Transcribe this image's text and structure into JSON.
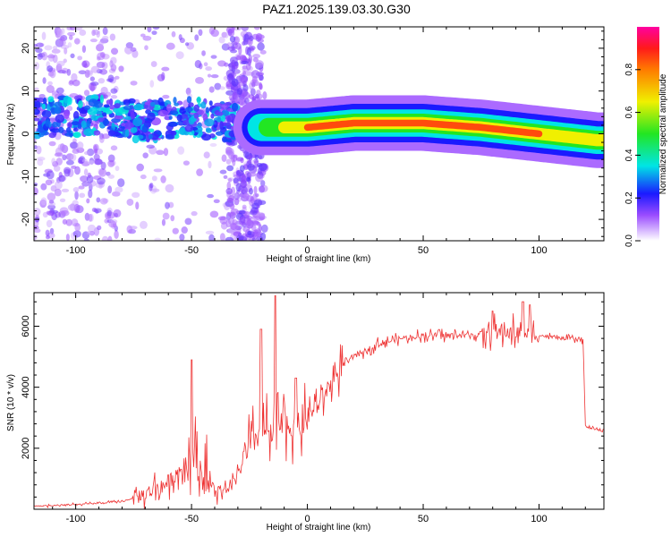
{
  "title": "PAZ1.2025.139.03.30.G30",
  "chart_data": [
    {
      "type": "heatmap",
      "title": "",
      "xlabel": "Height of straight line (km)",
      "ylabel": "Frequency (Hz)",
      "xlim": [
        -118,
        128
      ],
      "ylim": [
        -25,
        25
      ],
      "xticks": [
        -100,
        -50,
        0,
        50,
        100
      ],
      "yticks": [
        -20,
        -10,
        0,
        10,
        20
      ],
      "colorbar": {
        "label": "Normalized spectral amplitude",
        "range": [
          0,
          1
        ],
        "ticks": [
          "0.0",
          "0.2",
          "0.4",
          "0.6",
          "0.8"
        ],
        "colormap": "rainbow"
      },
      "ridge": [
        {
          "x": -110,
          "y": 4,
          "amp": 0.25
        },
        {
          "x": -90,
          "y": 4,
          "amp": 0.3
        },
        {
          "x": -70,
          "y": 3,
          "amp": 0.3
        },
        {
          "x": -50,
          "y": 4,
          "amp": 0.3
        },
        {
          "x": -40,
          "y": 3,
          "amp": 0.25
        },
        {
          "x": -20,
          "y": 1.5,
          "amp": 0.45
        },
        {
          "x": 0,
          "y": 1.5,
          "amp": 0.85
        },
        {
          "x": 20,
          "y": 2.5,
          "amp": 0.9
        },
        {
          "x": 50,
          "y": 2.5,
          "amp": 0.95
        },
        {
          "x": 75,
          "y": 1.5,
          "amp": 0.9
        },
        {
          "x": 100,
          "y": 0,
          "amp": 0.85
        },
        {
          "x": 125,
          "y": -1.5,
          "amp": 0.7
        }
      ]
    },
    {
      "type": "line",
      "title": "",
      "xlabel": "Height of straight line (km)",
      "ylabel": "SNR (10 * v/v)",
      "xlim": [
        -118,
        128
      ],
      "ylim": [
        0,
        7100
      ],
      "xticks": [
        -100,
        -50,
        0,
        50,
        100
      ],
      "yticks": [
        2000,
        4000,
        6000
      ],
      "color": "#ee3333",
      "series": [
        {
          "name": "SNR",
          "x": [
            -118,
            -100,
            -80,
            -70,
            -60,
            -52,
            -48,
            -45,
            -40,
            -35,
            -30,
            -25,
            -20,
            -18,
            -15,
            -10,
            -5,
            0,
            5,
            10,
            15,
            20,
            30,
            40,
            50,
            60,
            70,
            80,
            90,
            95,
            100,
            110,
            119,
            120,
            128
          ],
          "values": [
            100,
            150,
            250,
            500,
            900,
            1500,
            1600,
            1100,
            600,
            500,
            1200,
            2000,
            2600,
            2600,
            2300,
            2900,
            2500,
            3000,
            3500,
            4100,
            4700,
            5000,
            5400,
            5600,
            5700,
            5700,
            5700,
            5800,
            5800,
            5750,
            5700,
            5600,
            5550,
            2700,
            2550
          ],
          "spikes": [
            {
              "x": -50,
              "y": 4900
            },
            {
              "x": -20,
              "y": 5900
            },
            {
              "x": -14,
              "y": 7000
            },
            {
              "x": -5,
              "y": 4300
            },
            {
              "x": 80,
              "y": 6500
            },
            {
              "x": 93,
              "y": 6800
            },
            {
              "x": 96,
              "y": 6700
            }
          ]
        }
      ]
    }
  ]
}
